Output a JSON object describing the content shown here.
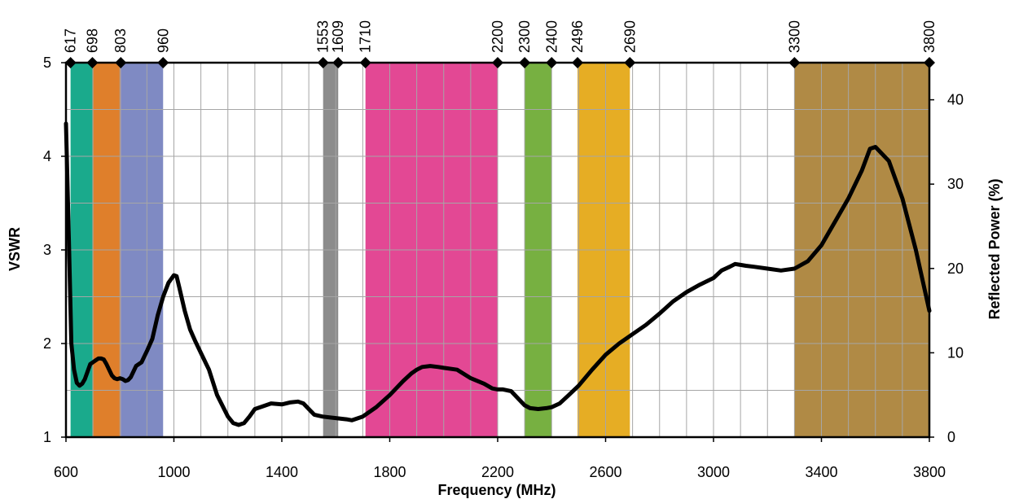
{
  "chart_data": {
    "type": "line",
    "title": "",
    "xlabel": "Frequency (MHz)",
    "ylabel": "VSWR",
    "y2label": "Reflected Power (%)",
    "xlim": [
      600,
      3800
    ],
    "ylim": [
      1,
      5
    ],
    "y2lim": [
      0,
      44.4
    ],
    "x_ticks": [
      600,
      1000,
      1400,
      1800,
      2200,
      2600,
      3000,
      3400,
      3800
    ],
    "y_ticks": [
      1,
      2,
      3,
      4,
      5
    ],
    "y2_ticks": [
      0,
      10,
      20,
      30,
      40
    ],
    "x_minor_step": 100,
    "y_minor_step": 0.5,
    "grid": true,
    "band_markers": [
      617,
      698,
      803,
      960,
      1553,
      1609,
      1710,
      2200,
      2300,
      2400,
      2496,
      2690,
      3300,
      3800
    ],
    "bands": [
      {
        "start": 617,
        "end": 698,
        "color": "#1aaa8c"
      },
      {
        "start": 698,
        "end": 803,
        "color": "#df7f2b"
      },
      {
        "start": 803,
        "end": 960,
        "color": "#7f8ac3"
      },
      {
        "start": 1553,
        "end": 1609,
        "color": "#8c8c8c"
      },
      {
        "start": 1710,
        "end": 2200,
        "color": "#e34894"
      },
      {
        "start": 2300,
        "end": 2400,
        "color": "#77b041"
      },
      {
        "start": 2496,
        "end": 2690,
        "color": "#e6ad24"
      },
      {
        "start": 3300,
        "end": 3800,
        "color": "#b08a45"
      }
    ],
    "series": [
      {
        "color": "#000000",
        "x": [
          600,
          610,
          620,
          630,
          640,
          650,
          660,
          670,
          680,
          690,
          700,
          710,
          720,
          730,
          740,
          750,
          760,
          770,
          780,
          790,
          800,
          810,
          820,
          830,
          840,
          850,
          860,
          870,
          880,
          890,
          900,
          920,
          940,
          960,
          980,
          1000,
          1010,
          1020,
          1040,
          1060,
          1080,
          1100,
          1130,
          1160,
          1200,
          1220,
          1240,
          1260,
          1280,
          1300,
          1330,
          1360,
          1400,
          1430,
          1460,
          1480,
          1500,
          1520,
          1550,
          1580,
          1610,
          1640,
          1660,
          1700,
          1750,
          1800,
          1850,
          1880,
          1900,
          1920,
          1950,
          1980,
          2000,
          2050,
          2100,
          2150,
          2180,
          2200,
          2220,
          2250,
          2280,
          2300,
          2320,
          2350,
          2380,
          2400,
          2430,
          2460,
          2500,
          2550,
          2600,
          2650,
          2700,
          2750,
          2800,
          2850,
          2900,
          2950,
          3000,
          3030,
          3060,
          3080,
          3100,
          3120,
          3150,
          3200,
          3250,
          3300,
          3350,
          3400,
          3450,
          3500,
          3550,
          3580,
          3600,
          3650,
          3700,
          3750,
          3800
        ],
        "values": [
          4.35,
          3.2,
          2.0,
          1.72,
          1.58,
          1.55,
          1.57,
          1.62,
          1.7,
          1.78,
          1.8,
          1.82,
          1.84,
          1.84,
          1.83,
          1.78,
          1.72,
          1.66,
          1.63,
          1.62,
          1.63,
          1.62,
          1.6,
          1.61,
          1.64,
          1.7,
          1.76,
          1.78,
          1.8,
          1.86,
          1.92,
          2.05,
          2.3,
          2.5,
          2.65,
          2.73,
          2.72,
          2.6,
          2.35,
          2.15,
          2.02,
          1.9,
          1.72,
          1.45,
          1.22,
          1.15,
          1.13,
          1.15,
          1.22,
          1.3,
          1.33,
          1.36,
          1.35,
          1.37,
          1.38,
          1.36,
          1.3,
          1.24,
          1.22,
          1.21,
          1.2,
          1.19,
          1.18,
          1.22,
          1.32,
          1.45,
          1.6,
          1.68,
          1.72,
          1.75,
          1.76,
          1.75,
          1.74,
          1.72,
          1.63,
          1.57,
          1.52,
          1.51,
          1.51,
          1.49,
          1.4,
          1.34,
          1.31,
          1.3,
          1.31,
          1.32,
          1.36,
          1.44,
          1.55,
          1.72,
          1.88,
          2.0,
          2.1,
          2.2,
          2.32,
          2.45,
          2.55,
          2.63,
          2.7,
          2.78,
          2.82,
          2.85,
          2.84,
          2.83,
          2.82,
          2.8,
          2.78,
          2.8,
          2.88,
          3.05,
          3.3,
          3.55,
          3.85,
          4.08,
          4.1,
          3.95,
          3.55,
          3.0,
          2.35
        ]
      }
    ]
  }
}
